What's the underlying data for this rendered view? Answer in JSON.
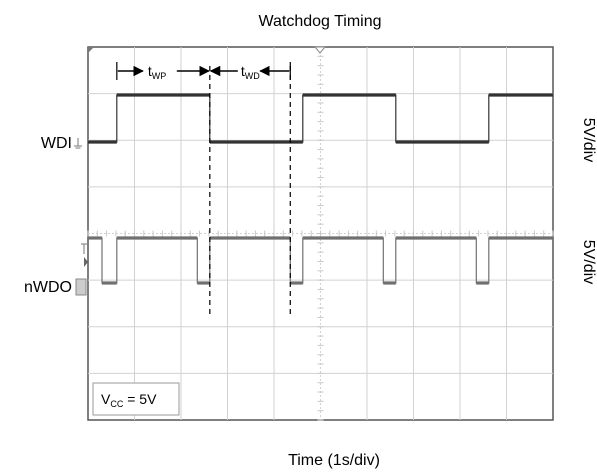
{
  "chart_data": {
    "type": "line",
    "title": "Watchdog Timing",
    "xlabel": "Time (1s/div)",
    "xlim": [
      0,
      10
    ],
    "grid": true,
    "series": [
      {
        "name": "WDI",
        "scale_label": "5V/div",
        "ylim": [
          0,
          1
        ],
        "x": [
          0,
          0.62,
          0.62,
          2.62,
          2.62,
          4.62,
          4.62,
          6.62,
          6.62,
          8.62,
          8.62,
          10
        ],
        "values": [
          0,
          0,
          1,
          1,
          0,
          0,
          1,
          1,
          0,
          0,
          1,
          1
        ]
      },
      {
        "name": "nWDO",
        "scale_label": "5V/div",
        "ylim": [
          0,
          1
        ],
        "x": [
          0,
          0.3,
          0.3,
          0.62,
          0.62,
          2.35,
          2.35,
          2.62,
          2.62,
          4.35,
          4.35,
          4.62,
          4.62,
          6.35,
          6.35,
          6.62,
          6.62,
          8.35,
          8.35,
          8.62,
          8.62,
          10
        ],
        "values": [
          1,
          1,
          0,
          0,
          1,
          1,
          0,
          0,
          1,
          1,
          0,
          0,
          1,
          1,
          0,
          0,
          1,
          1,
          0,
          0,
          1,
          1
        ]
      }
    ],
    "markers": [
      {
        "label": "t",
        "sub": "WP",
        "x_start": 0.62,
        "x_end": 2.62
      },
      {
        "label": "t",
        "sub": "WD",
        "x_start": 2.62,
        "x_end": 4.35
      }
    ],
    "annotation": {
      "label": "V",
      "sub": "CC",
      "suffix": " = 5V"
    }
  },
  "icons": [
    "ground-marker-icon",
    "trigger-level-icon"
  ]
}
